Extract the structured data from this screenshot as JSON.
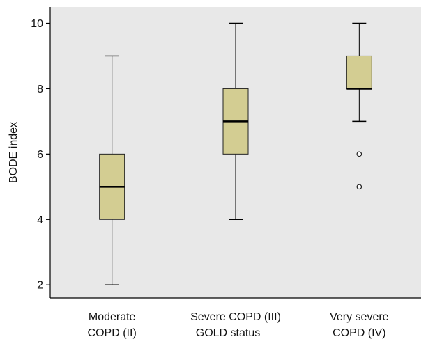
{
  "chart_data": {
    "type": "box",
    "ylabel": "BODE index",
    "xlabel": "GOLD status",
    "ylim": [
      1.6,
      10.5
    ],
    "yticks": [
      2,
      4,
      6,
      8,
      10
    ],
    "grid": false,
    "plot_background": "#e8e8e8",
    "box_color": "#d3cd92",
    "categories": [
      {
        "line1": "Moderate",
        "line2": "COPD (II)"
      },
      {
        "line1": "Severe COPD (III)",
        "line2": ""
      },
      {
        "line1": "Very severe",
        "line2": "COPD (IV)"
      }
    ],
    "boxes": [
      {
        "whisker_low": 2,
        "q1": 4,
        "median": 5,
        "q3": 6,
        "whisker_high": 9,
        "outliers": []
      },
      {
        "whisker_low": 4,
        "q1": 6,
        "median": 7,
        "q3": 8,
        "whisker_high": 10,
        "outliers": []
      },
      {
        "whisker_low": 7,
        "q1": 8,
        "median": 8,
        "q3": 9,
        "whisker_high": 10,
        "outliers": [
          6,
          5
        ]
      }
    ]
  }
}
